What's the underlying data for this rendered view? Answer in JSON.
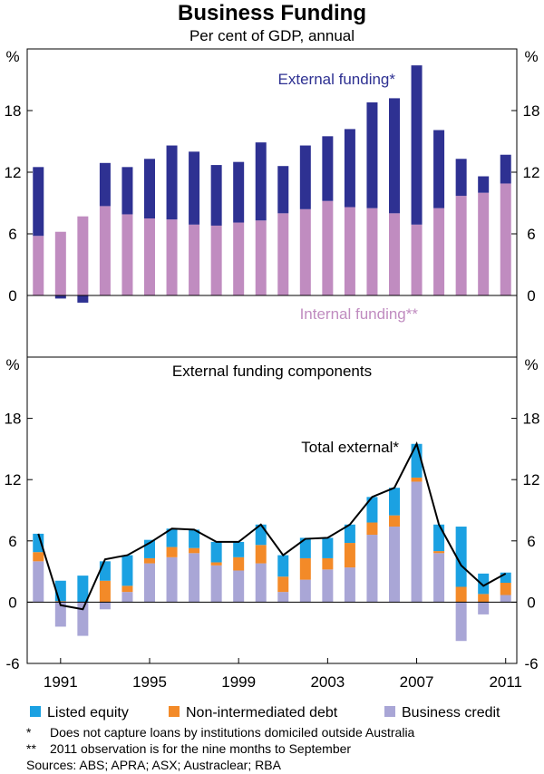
{
  "title": "Business Funding",
  "subtitle": "Per cent of GDP, annual",
  "colors": {
    "external": "#2e3192",
    "internal": "#c08cc0",
    "equity": "#1ba1e2",
    "debt": "#f38a28",
    "credit": "#a9a6d6",
    "line": "#000000",
    "frame": "#000000"
  },
  "chart_data": [
    {
      "type": "bar",
      "stacked": true,
      "panel": "top",
      "unit_label": "%",
      "ylim": [
        -6,
        24
      ],
      "yticks": [
        0,
        6,
        12,
        18
      ],
      "x": [
        1990,
        1991,
        1992,
        1993,
        1994,
        1995,
        1996,
        1997,
        1998,
        1999,
        2000,
        2001,
        2002,
        2003,
        2004,
        2005,
        2006,
        2007,
        2008,
        2009,
        2010,
        2011
      ],
      "series": [
        {
          "name": "Internal funding**",
          "values": [
            5.8,
            6.2,
            7.7,
            8.7,
            7.9,
            7.5,
            7.4,
            6.9,
            6.8,
            7.1,
            7.3,
            8.0,
            8.4,
            9.2,
            8.6,
            8.5,
            8.0,
            6.9,
            8.5,
            9.7,
            10.0,
            10.9
          ]
        },
        {
          "name": "External funding*",
          "values": [
            6.7,
            -0.3,
            -0.7,
            4.2,
            4.6,
            5.8,
            7.2,
            7.1,
            5.9,
            5.9,
            7.6,
            4.6,
            6.2,
            6.3,
            7.6,
            10.3,
            11.2,
            15.5,
            7.6,
            3.6,
            1.6,
            2.8
          ]
        }
      ],
      "labels": {
        "external": "External funding*",
        "internal": "Internal funding**"
      }
    },
    {
      "type": "bar",
      "stacked": true,
      "panel": "bottom",
      "title": "External funding components",
      "unit_label": "%",
      "ylim": [
        -6,
        24
      ],
      "yticks": [
        -6,
        0,
        6,
        12,
        18
      ],
      "x": [
        1990,
        1991,
        1992,
        1993,
        1994,
        1995,
        1996,
        1997,
        1998,
        1999,
        2000,
        2001,
        2002,
        2003,
        2004,
        2005,
        2006,
        2007,
        2008,
        2009,
        2010,
        2011
      ],
      "xtick_labels": [
        "1991",
        "1995",
        "1999",
        "2003",
        "2007",
        "2011"
      ],
      "series": [
        {
          "name": "Business credit",
          "values": [
            4.0,
            -2.4,
            -3.3,
            -0.7,
            1.0,
            3.8,
            4.4,
            4.8,
            3.6,
            3.1,
            3.8,
            1.0,
            2.2,
            3.2,
            3.4,
            6.6,
            7.4,
            11.8,
            4.8,
            -3.8,
            -1.2,
            0.7
          ]
        },
        {
          "name": "Non-intermediated debt",
          "values": [
            0.9,
            0.1,
            0.0,
            2.1,
            0.6,
            0.5,
            1.0,
            0.5,
            0.3,
            1.3,
            1.8,
            1.5,
            2.1,
            1.1,
            2.4,
            1.2,
            1.1,
            0.4,
            0.2,
            1.5,
            0.8,
            1.2
          ]
        },
        {
          "name": "Listed equity",
          "values": [
            1.8,
            2.0,
            2.6,
            1.9,
            3.0,
            1.8,
            1.8,
            1.8,
            2.0,
            1.5,
            2.0,
            2.1,
            2.0,
            2.0,
            1.8,
            2.5,
            2.7,
            3.3,
            2.6,
            5.9,
            2.0,
            1.0
          ]
        }
      ],
      "line": {
        "name": "Total external*",
        "values": [
          6.7,
          -0.3,
          -0.7,
          4.2,
          4.6,
          5.8,
          7.2,
          7.1,
          5.9,
          5.9,
          7.6,
          4.6,
          6.2,
          6.3,
          7.6,
          10.3,
          11.2,
          15.5,
          7.6,
          3.6,
          1.6,
          2.8
        ]
      }
    }
  ],
  "legend": [
    {
      "key": "equity",
      "label": "Listed equity"
    },
    {
      "key": "debt",
      "label": "Non-intermediated debt"
    },
    {
      "key": "credit",
      "label": "Business credit"
    }
  ],
  "notes": [
    {
      "marker": "*",
      "text": "Does not capture loans by institutions domiciled outside Australia"
    },
    {
      "marker": "**",
      "text": "2011 observation is for the nine months to September"
    }
  ],
  "sources": "Sources: ABS; APRA; ASX; Austraclear; RBA"
}
